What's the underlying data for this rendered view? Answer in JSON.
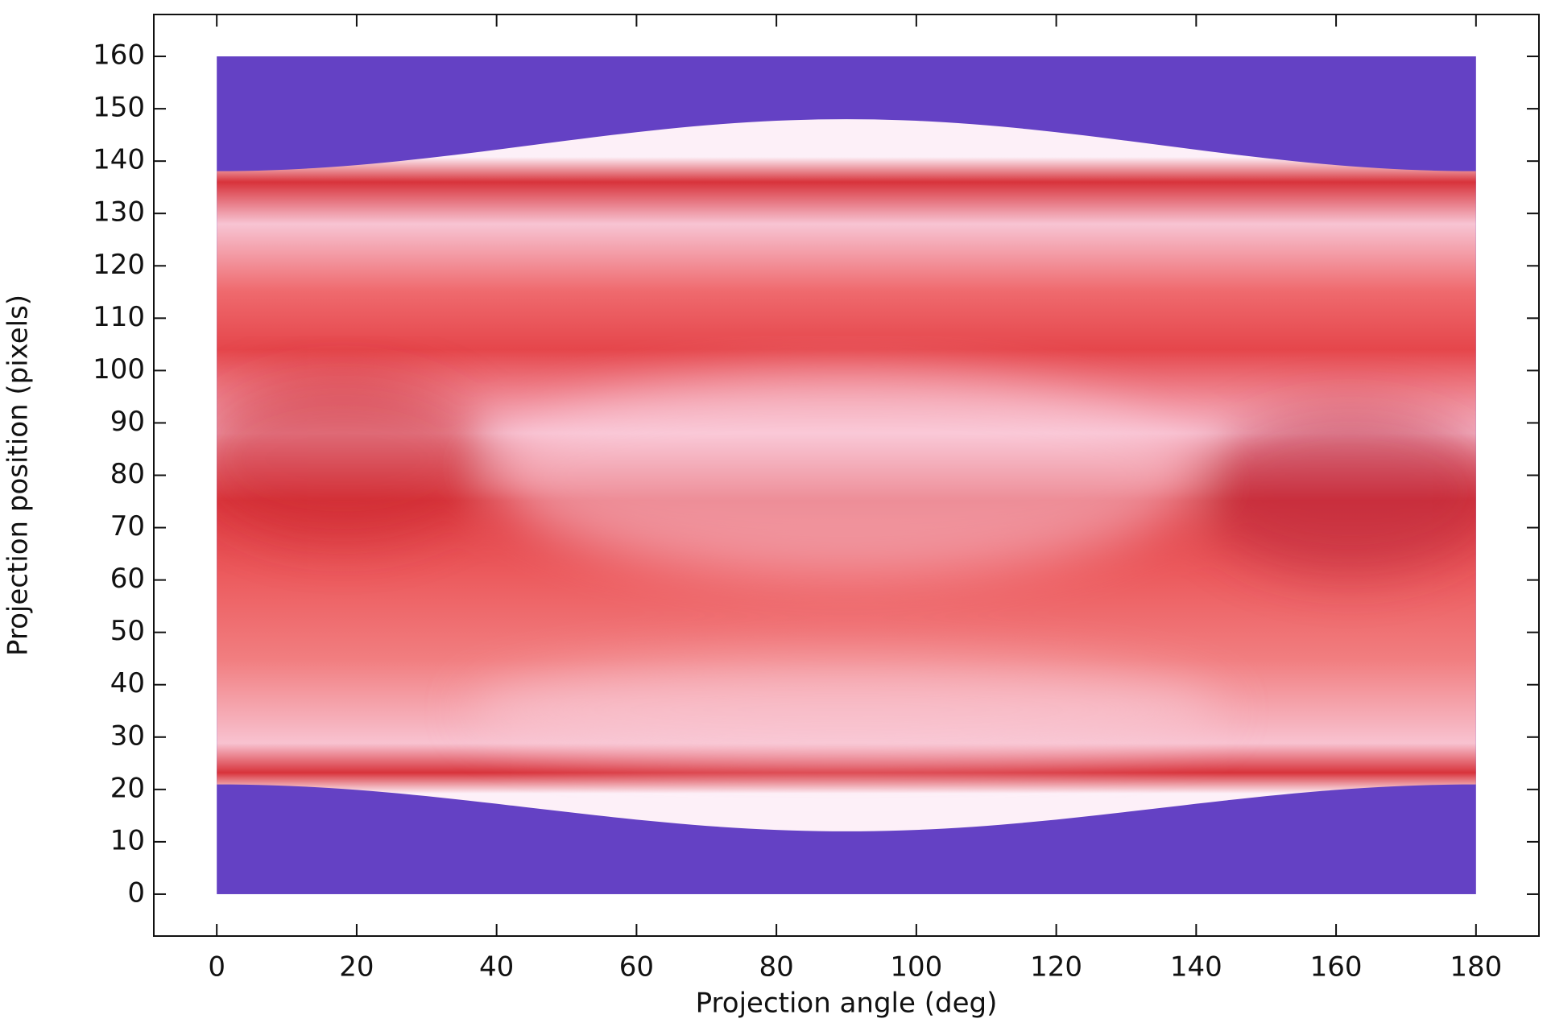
{
  "chart_data": {
    "type": "heatmap",
    "xlabel": "Projection angle (deg)",
    "ylabel": "Projection position (pixels)",
    "extent": [
      0,
      180,
      0,
      160
    ],
    "xlim": [
      -9,
      189
    ],
    "ylim": [
      -8,
      168
    ],
    "xticks": [
      0,
      20,
      40,
      60,
      80,
      100,
      120,
      140,
      160,
      180
    ],
    "yticks": [
      0,
      10,
      20,
      30,
      40,
      50,
      60,
      70,
      80,
      90,
      100,
      110,
      120,
      130,
      140,
      150,
      160
    ],
    "background_color": "#6441c4"
  }
}
